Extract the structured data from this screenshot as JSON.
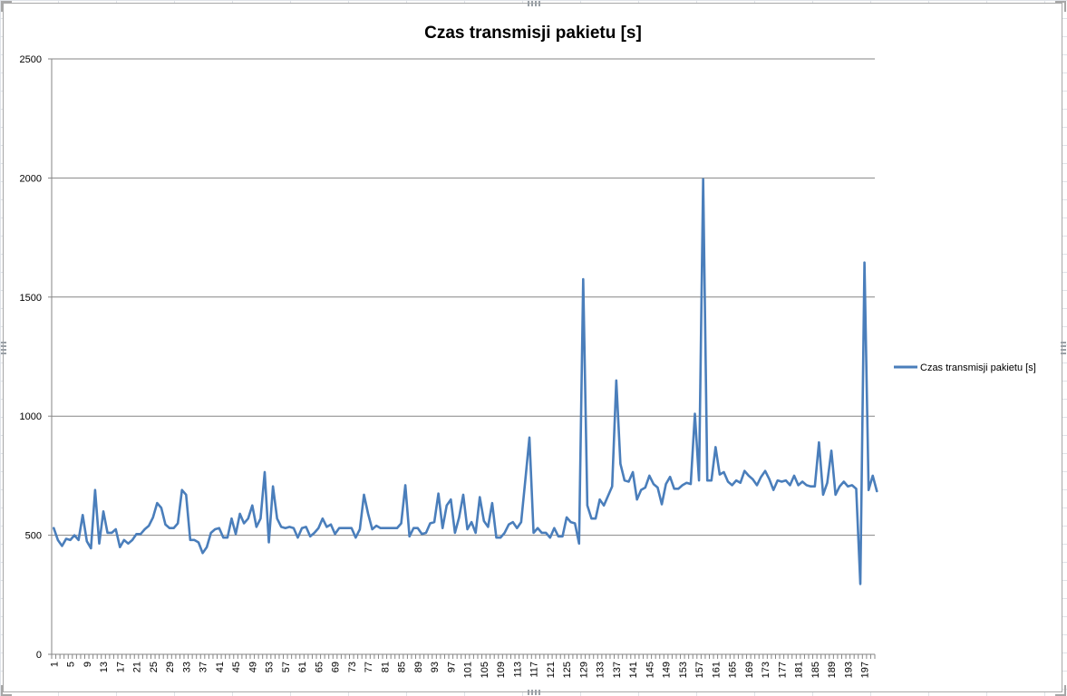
{
  "chart_data": {
    "type": "line",
    "title": "Czas transmisji pakietu [s]",
    "xlabel": "",
    "ylabel": "",
    "ylim": [
      0,
      2500
    ],
    "yticks": [
      0,
      500,
      1000,
      1500,
      2000,
      2500
    ],
    "grid": true,
    "legend_position": "right",
    "x_start": 1,
    "x_count": 199,
    "x_tick_labels": [
      "1",
      "5",
      "9",
      "13",
      "17",
      "21",
      "25",
      "29",
      "33",
      "37",
      "41",
      "45",
      "49",
      "53",
      "57",
      "61",
      "65",
      "69",
      "73",
      "77",
      "81",
      "85",
      "89",
      "93",
      "97",
      "101",
      "105",
      "109",
      "113",
      "117",
      "121",
      "125",
      "129",
      "133",
      "137",
      "141",
      "145",
      "149",
      "153",
      "157",
      "161",
      "165",
      "169",
      "173",
      "177",
      "181",
      "185",
      "189",
      "193",
      "197"
    ],
    "x_tick_every": 4,
    "series": [
      {
        "name": "Czas transmisji pakietu [s]",
        "color": "#4a7ebb",
        "values": [
          530,
          480,
          455,
          485,
          480,
          500,
          480,
          585,
          475,
          445,
          690,
          465,
          600,
          510,
          510,
          525,
          450,
          480,
          465,
          480,
          505,
          505,
          525,
          540,
          575,
          635,
          615,
          545,
          530,
          530,
          550,
          690,
          670,
          480,
          480,
          470,
          425,
          450,
          510,
          525,
          530,
          490,
          490,
          570,
          505,
          590,
          550,
          570,
          625,
          535,
          570,
          765,
          470,
          705,
          570,
          535,
          530,
          535,
          530,
          490,
          530,
          535,
          495,
          510,
          530,
          570,
          535,
          545,
          505,
          530,
          530,
          530,
          530,
          490,
          525,
          670,
          590,
          525,
          540,
          530,
          530,
          530,
          530,
          530,
          550,
          710,
          495,
          530,
          530,
          505,
          510,
          550,
          555,
          675,
          530,
          625,
          650,
          510,
          575,
          670,
          525,
          555,
          510,
          660,
          560,
          535,
          635,
          490,
          490,
          510,
          545,
          555,
          530,
          555,
          730,
          910,
          510,
          530,
          510,
          510,
          490,
          530,
          495,
          495,
          575,
          555,
          550,
          465,
          1575,
          625,
          570,
          570,
          650,
          625,
          665,
          705,
          1150,
          800,
          730,
          725,
          765,
          650,
          690,
          700,
          750,
          715,
          700,
          630,
          715,
          745,
          695,
          695,
          710,
          720,
          715,
          1010,
          730,
          1995,
          730,
          730,
          870,
          755,
          765,
          725,
          710,
          730,
          720,
          770,
          750,
          735,
          710,
          745,
          770,
          735,
          690,
          730,
          725,
          730,
          710,
          750,
          710,
          725,
          710,
          705,
          705,
          890,
          670,
          720,
          855,
          670,
          705,
          725,
          705,
          710,
          695,
          295,
          1645,
          690,
          750,
          685
        ]
      }
    ]
  }
}
